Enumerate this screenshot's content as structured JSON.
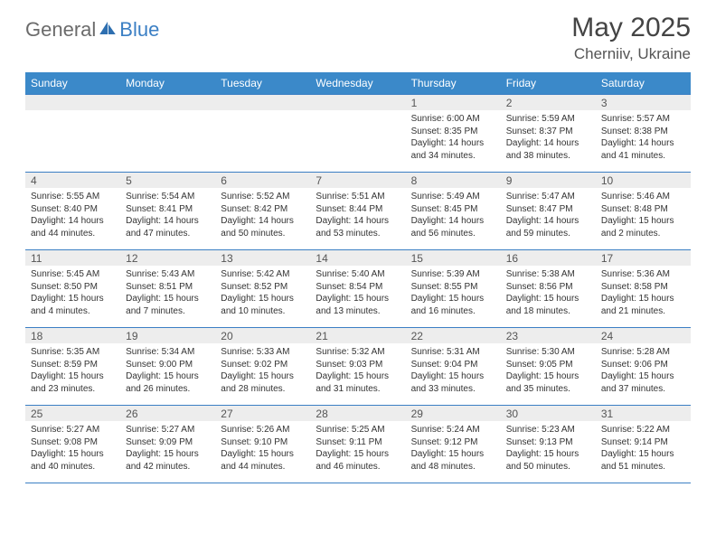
{
  "brand": {
    "part1": "General",
    "part2": "Blue"
  },
  "title": "May 2025",
  "location": "Cherniiv, Ukraine",
  "colors": {
    "header_bg": "#3b89c9",
    "header_text": "#ffffff",
    "line": "#3b7fc4",
    "daynum_bg": "#ededed",
    "text": "#333333",
    "brand_gray": "#6b6b6b"
  },
  "weekdays": [
    "Sunday",
    "Monday",
    "Tuesday",
    "Wednesday",
    "Thursday",
    "Friday",
    "Saturday"
  ],
  "weeks": [
    [
      null,
      null,
      null,
      null,
      {
        "n": "1",
        "sr": "Sunrise: 6:00 AM",
        "ss": "Sunset: 8:35 PM",
        "d1": "Daylight: 14 hours",
        "d2": "and 34 minutes."
      },
      {
        "n": "2",
        "sr": "Sunrise: 5:59 AM",
        "ss": "Sunset: 8:37 PM",
        "d1": "Daylight: 14 hours",
        "d2": "and 38 minutes."
      },
      {
        "n": "3",
        "sr": "Sunrise: 5:57 AM",
        "ss": "Sunset: 8:38 PM",
        "d1": "Daylight: 14 hours",
        "d2": "and 41 minutes."
      }
    ],
    [
      {
        "n": "4",
        "sr": "Sunrise: 5:55 AM",
        "ss": "Sunset: 8:40 PM",
        "d1": "Daylight: 14 hours",
        "d2": "and 44 minutes."
      },
      {
        "n": "5",
        "sr": "Sunrise: 5:54 AM",
        "ss": "Sunset: 8:41 PM",
        "d1": "Daylight: 14 hours",
        "d2": "and 47 minutes."
      },
      {
        "n": "6",
        "sr": "Sunrise: 5:52 AM",
        "ss": "Sunset: 8:42 PM",
        "d1": "Daylight: 14 hours",
        "d2": "and 50 minutes."
      },
      {
        "n": "7",
        "sr": "Sunrise: 5:51 AM",
        "ss": "Sunset: 8:44 PM",
        "d1": "Daylight: 14 hours",
        "d2": "and 53 minutes."
      },
      {
        "n": "8",
        "sr": "Sunrise: 5:49 AM",
        "ss": "Sunset: 8:45 PM",
        "d1": "Daylight: 14 hours",
        "d2": "and 56 minutes."
      },
      {
        "n": "9",
        "sr": "Sunrise: 5:47 AM",
        "ss": "Sunset: 8:47 PM",
        "d1": "Daylight: 14 hours",
        "d2": "and 59 minutes."
      },
      {
        "n": "10",
        "sr": "Sunrise: 5:46 AM",
        "ss": "Sunset: 8:48 PM",
        "d1": "Daylight: 15 hours",
        "d2": "and 2 minutes."
      }
    ],
    [
      {
        "n": "11",
        "sr": "Sunrise: 5:45 AM",
        "ss": "Sunset: 8:50 PM",
        "d1": "Daylight: 15 hours",
        "d2": "and 4 minutes."
      },
      {
        "n": "12",
        "sr": "Sunrise: 5:43 AM",
        "ss": "Sunset: 8:51 PM",
        "d1": "Daylight: 15 hours",
        "d2": "and 7 minutes."
      },
      {
        "n": "13",
        "sr": "Sunrise: 5:42 AM",
        "ss": "Sunset: 8:52 PM",
        "d1": "Daylight: 15 hours",
        "d2": "and 10 minutes."
      },
      {
        "n": "14",
        "sr": "Sunrise: 5:40 AM",
        "ss": "Sunset: 8:54 PM",
        "d1": "Daylight: 15 hours",
        "d2": "and 13 minutes."
      },
      {
        "n": "15",
        "sr": "Sunrise: 5:39 AM",
        "ss": "Sunset: 8:55 PM",
        "d1": "Daylight: 15 hours",
        "d2": "and 16 minutes."
      },
      {
        "n": "16",
        "sr": "Sunrise: 5:38 AM",
        "ss": "Sunset: 8:56 PM",
        "d1": "Daylight: 15 hours",
        "d2": "and 18 minutes."
      },
      {
        "n": "17",
        "sr": "Sunrise: 5:36 AM",
        "ss": "Sunset: 8:58 PM",
        "d1": "Daylight: 15 hours",
        "d2": "and 21 minutes."
      }
    ],
    [
      {
        "n": "18",
        "sr": "Sunrise: 5:35 AM",
        "ss": "Sunset: 8:59 PM",
        "d1": "Daylight: 15 hours",
        "d2": "and 23 minutes."
      },
      {
        "n": "19",
        "sr": "Sunrise: 5:34 AM",
        "ss": "Sunset: 9:00 PM",
        "d1": "Daylight: 15 hours",
        "d2": "and 26 minutes."
      },
      {
        "n": "20",
        "sr": "Sunrise: 5:33 AM",
        "ss": "Sunset: 9:02 PM",
        "d1": "Daylight: 15 hours",
        "d2": "and 28 minutes."
      },
      {
        "n": "21",
        "sr": "Sunrise: 5:32 AM",
        "ss": "Sunset: 9:03 PM",
        "d1": "Daylight: 15 hours",
        "d2": "and 31 minutes."
      },
      {
        "n": "22",
        "sr": "Sunrise: 5:31 AM",
        "ss": "Sunset: 9:04 PM",
        "d1": "Daylight: 15 hours",
        "d2": "and 33 minutes."
      },
      {
        "n": "23",
        "sr": "Sunrise: 5:30 AM",
        "ss": "Sunset: 9:05 PM",
        "d1": "Daylight: 15 hours",
        "d2": "and 35 minutes."
      },
      {
        "n": "24",
        "sr": "Sunrise: 5:28 AM",
        "ss": "Sunset: 9:06 PM",
        "d1": "Daylight: 15 hours",
        "d2": "and 37 minutes."
      }
    ],
    [
      {
        "n": "25",
        "sr": "Sunrise: 5:27 AM",
        "ss": "Sunset: 9:08 PM",
        "d1": "Daylight: 15 hours",
        "d2": "and 40 minutes."
      },
      {
        "n": "26",
        "sr": "Sunrise: 5:27 AM",
        "ss": "Sunset: 9:09 PM",
        "d1": "Daylight: 15 hours",
        "d2": "and 42 minutes."
      },
      {
        "n": "27",
        "sr": "Sunrise: 5:26 AM",
        "ss": "Sunset: 9:10 PM",
        "d1": "Daylight: 15 hours",
        "d2": "and 44 minutes."
      },
      {
        "n": "28",
        "sr": "Sunrise: 5:25 AM",
        "ss": "Sunset: 9:11 PM",
        "d1": "Daylight: 15 hours",
        "d2": "and 46 minutes."
      },
      {
        "n": "29",
        "sr": "Sunrise: 5:24 AM",
        "ss": "Sunset: 9:12 PM",
        "d1": "Daylight: 15 hours",
        "d2": "and 48 minutes."
      },
      {
        "n": "30",
        "sr": "Sunrise: 5:23 AM",
        "ss": "Sunset: 9:13 PM",
        "d1": "Daylight: 15 hours",
        "d2": "and 50 minutes."
      },
      {
        "n": "31",
        "sr": "Sunrise: 5:22 AM",
        "ss": "Sunset: 9:14 PM",
        "d1": "Daylight: 15 hours",
        "d2": "and 51 minutes."
      }
    ]
  ]
}
